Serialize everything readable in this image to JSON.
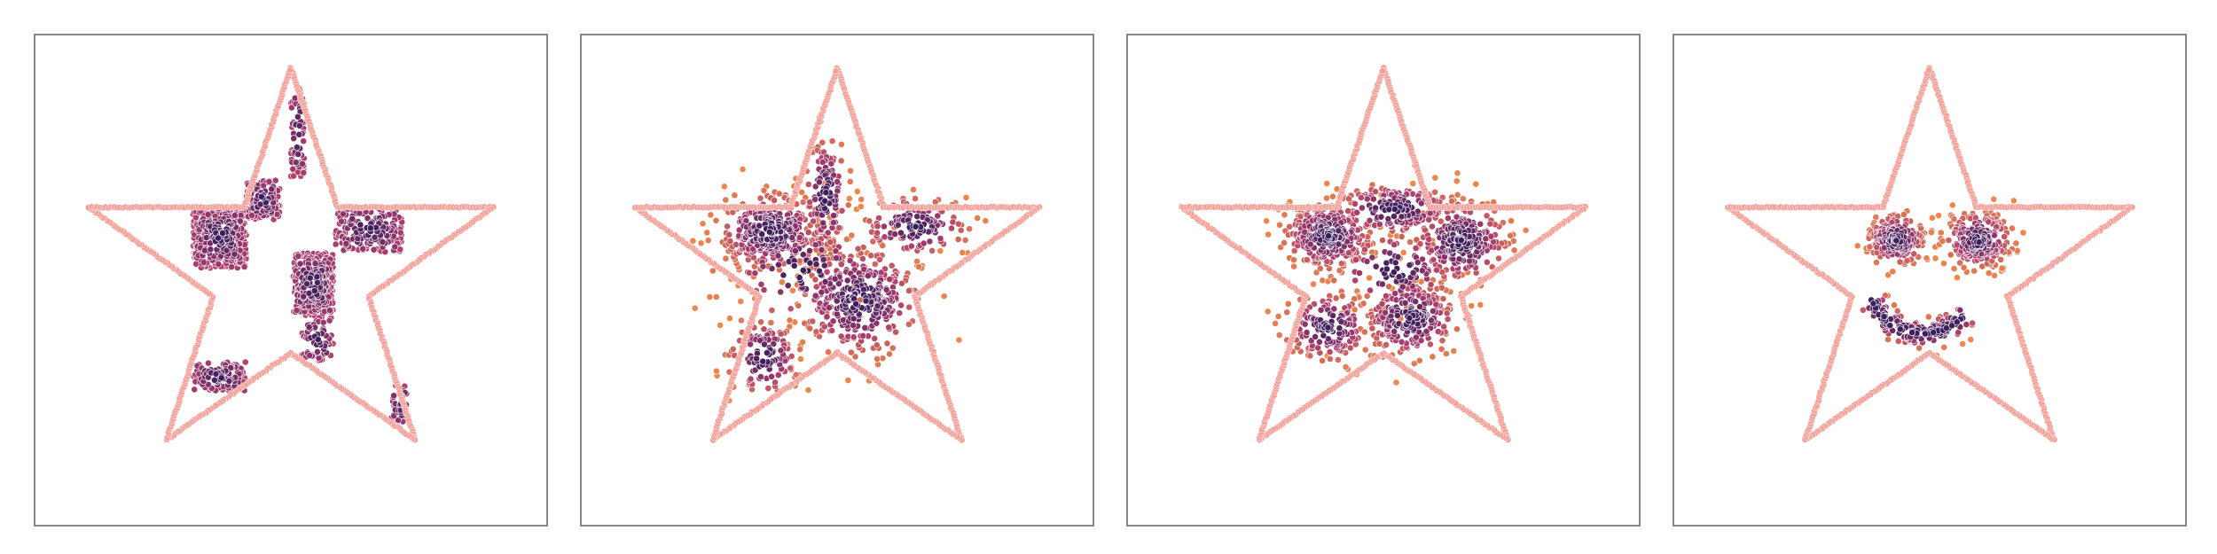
{
  "chart_data": [
    {
      "type": "scatter",
      "title": "",
      "xlabel": "",
      "ylabel": "",
      "xlim": [
        -1.15,
        1.15
      ],
      "ylim": [
        -1.15,
        1.1
      ],
      "grid": false,
      "colors": {
        "outline": "#f5a19a",
        "dense": "#3b1e5c",
        "mid": "#a83b6e",
        "sparse": "#f08a4b"
      },
      "outline_vertices": [
        [
          0,
          0.95
        ],
        [
          0.21,
          0.31
        ],
        [
          0.91,
          0.31
        ],
        [
          0.35,
          -0.1
        ],
        [
          0.56,
          -0.76
        ],
        [
          0,
          -0.36
        ],
        [
          -0.56,
          -0.76
        ],
        [
          -0.35,
          -0.1
        ],
        [
          -0.91,
          0.31
        ],
        [
          -0.21,
          0.31
        ]
      ],
      "clusters": [
        {
          "shape": "box",
          "x": [
            -0.44,
            -0.2
          ],
          "y": [
            0.03,
            0.31
          ],
          "n": 340
        },
        {
          "shape": "box",
          "x": [
            0.01,
            0.19
          ],
          "y": [
            -0.19,
            0.1
          ],
          "n": 300
        },
        {
          "shape": "box",
          "x": [
            0.2,
            0.5
          ],
          "y": [
            0.1,
            0.31
          ],
          "n": 180
        },
        {
          "shape": "box",
          "x": [
            -0.2,
            -0.05
          ],
          "y": [
            0.25,
            0.44
          ],
          "n": 110
        },
        {
          "shape": "box",
          "x": [
            -0.44,
            -0.2
          ],
          "y": [
            -0.54,
            -0.4
          ],
          "n": 110
        },
        {
          "shape": "box",
          "x": [
            0.0,
            0.06
          ],
          "y": [
            0.45,
            0.86
          ],
          "n": 70
        },
        {
          "shape": "box",
          "x": [
            0.05,
            0.19
          ],
          "y": [
            -0.4,
            -0.19
          ],
          "n": 70
        },
        {
          "shape": "box",
          "x": [
            0.45,
            0.53
          ],
          "y": [
            -0.7,
            -0.5
          ],
          "n": 35
        }
      ]
    },
    {
      "type": "scatter",
      "title": "",
      "xlabel": "",
      "ylabel": "",
      "xlim": [
        -1.15,
        1.15
      ],
      "ylim": [
        -1.15,
        1.1
      ],
      "grid": false,
      "colors": {
        "outline": "#f5a19a",
        "dense": "#3b1e5c",
        "mid": "#a83b6e",
        "sparse": "#f08a4b"
      },
      "outline_vertices": [
        [
          0,
          0.95
        ],
        [
          0.21,
          0.31
        ],
        [
          0.91,
          0.31
        ],
        [
          0.35,
          -0.1
        ],
        [
          0.56,
          -0.76
        ],
        [
          0,
          -0.36
        ],
        [
          -0.56,
          -0.76
        ],
        [
          -0.35,
          -0.1
        ],
        [
          -0.91,
          0.31
        ],
        [
          -0.21,
          0.31
        ]
      ],
      "clusters": [
        {
          "shape": "gauss",
          "cx": -0.3,
          "cy": 0.2,
          "sx": 0.12,
          "sy": 0.09,
          "n": 330
        },
        {
          "shape": "gauss",
          "cx": -0.05,
          "cy": 0.36,
          "sx": 0.05,
          "sy": 0.14,
          "n": 130
        },
        {
          "shape": "gauss",
          "cx": 0.1,
          "cy": -0.12,
          "sx": 0.14,
          "sy": 0.13,
          "n": 330
        },
        {
          "shape": "gauss",
          "cx": 0.35,
          "cy": 0.22,
          "sx": 0.12,
          "sy": 0.07,
          "n": 130
        },
        {
          "shape": "gauss",
          "cx": -0.33,
          "cy": -0.38,
          "sx": 0.08,
          "sy": 0.09,
          "n": 120
        },
        {
          "shape": "gauss",
          "cx": -0.15,
          "cy": 0.02,
          "sx": 0.18,
          "sy": 0.12,
          "n": 110
        }
      ]
    },
    {
      "type": "scatter",
      "title": "",
      "xlabel": "",
      "ylabel": "",
      "xlim": [
        -1.15,
        1.15
      ],
      "ylim": [
        -1.15,
        1.1
      ],
      "grid": false,
      "colors": {
        "outline": "#f5a19a",
        "dense": "#3b1e5c",
        "mid": "#a83b6e",
        "sparse": "#f08a4b"
      },
      "outline_vertices": [
        [
          0,
          0.95
        ],
        [
          0.21,
          0.31
        ],
        [
          0.91,
          0.31
        ],
        [
          0.35,
          -0.1
        ],
        [
          0.56,
          -0.76
        ],
        [
          0,
          -0.36
        ],
        [
          -0.56,
          -0.76
        ],
        [
          -0.35,
          -0.1
        ],
        [
          -0.91,
          0.31
        ],
        [
          -0.21,
          0.31
        ]
      ],
      "clusters": [
        {
          "shape": "gauss",
          "cx": -0.25,
          "cy": 0.18,
          "sx": 0.1,
          "sy": 0.08,
          "n": 280
        },
        {
          "shape": "gauss",
          "cx": 0.35,
          "cy": 0.15,
          "sx": 0.11,
          "sy": 0.1,
          "n": 240
        },
        {
          "shape": "gauss",
          "cx": 0.12,
          "cy": -0.2,
          "sx": 0.11,
          "sy": 0.09,
          "n": 240
        },
        {
          "shape": "gauss",
          "cx": 0.05,
          "cy": 0.3,
          "sx": 0.14,
          "sy": 0.06,
          "n": 170
        },
        {
          "shape": "gauss",
          "cx": -0.25,
          "cy": -0.24,
          "sx": 0.1,
          "sy": 0.08,
          "n": 150
        },
        {
          "shape": "gauss",
          "cx": 0.05,
          "cy": 0.02,
          "sx": 0.14,
          "sy": 0.09,
          "n": 110
        }
      ]
    },
    {
      "type": "scatter",
      "title": "",
      "xlabel": "",
      "ylabel": "",
      "xlim": [
        -1.15,
        1.15
      ],
      "ylim": [
        -1.15,
        1.1
      ],
      "grid": false,
      "colors": {
        "outline": "#f5a19a",
        "dense": "#3b1e5c",
        "mid": "#a83b6e",
        "sparse": "#f08a4b"
      },
      "outline_vertices": [
        [
          0,
          0.95
        ],
        [
          0.21,
          0.31
        ],
        [
          0.91,
          0.31
        ],
        [
          0.35,
          -0.1
        ],
        [
          0.56,
          -0.76
        ],
        [
          0,
          -0.36
        ],
        [
          -0.56,
          -0.76
        ],
        [
          -0.35,
          -0.1
        ],
        [
          -0.91,
          0.31
        ],
        [
          -0.21,
          0.31
        ]
      ],
      "clusters": [
        {
          "shape": "gauss",
          "cx": -0.15,
          "cy": 0.16,
          "sx": 0.065,
          "sy": 0.06,
          "n": 200
        },
        {
          "shape": "gauss",
          "cx": 0.22,
          "cy": 0.16,
          "sx": 0.075,
          "sy": 0.065,
          "n": 240
        },
        {
          "shape": "arc",
          "cx": -0.03,
          "cy": -0.02,
          "r": 0.25,
          "a0": 200,
          "a1": 320,
          "width": 0.035,
          "n": 160
        }
      ]
    }
  ]
}
